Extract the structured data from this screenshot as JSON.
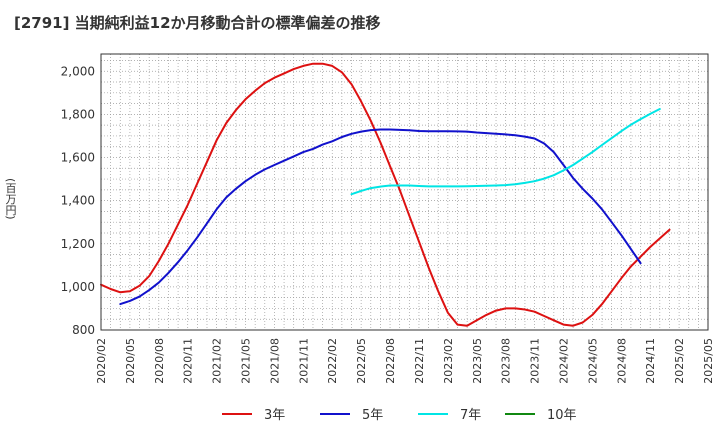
{
  "header": {
    "title": "[2791]  当期純利益12か月移動合計の標準偏差の推移"
  },
  "chart_data": {
    "type": "line",
    "y_unit": "(百万円)",
    "ylim": [
      800,
      2080
    ],
    "yticks": [
      800,
      1000,
      1200,
      1400,
      1600,
      1800,
      2000
    ],
    "ytick_labels": [
      "800",
      "1,000",
      "1,200",
      "1,400",
      "1,600",
      "1,800",
      "2,000"
    ],
    "xtick_labels": [
      "2020/02",
      "2020/05",
      "2020/08",
      "2020/11",
      "2021/02",
      "2021/05",
      "2021/08",
      "2021/11",
      "2022/02",
      "2022/05",
      "2022/08",
      "2022/11",
      "2023/02",
      "2023/05",
      "2023/08",
      "2023/11",
      "2024/02",
      "2024/05",
      "2024/08",
      "2024/11",
      "2025/02",
      "2025/05"
    ],
    "x_range_months": [
      "2020/02",
      "2025/05"
    ],
    "grid": true,
    "legend_position": "bottom",
    "series": [
      {
        "name": "3年",
        "color": "#dd1111",
        "start": "2020/02",
        "values": [
          1010,
          990,
          975,
          980,
          1005,
          1050,
          1120,
          1200,
          1290,
          1380,
          1480,
          1580,
          1680,
          1760,
          1820,
          1870,
          1910,
          1945,
          1970,
          1990,
          2010,
          2025,
          2035,
          2035,
          2025,
          1995,
          1940,
          1860,
          1770,
          1670,
          1560,
          1450,
          1330,
          1210,
          1090,
          980,
          880,
          825,
          820,
          845,
          870,
          890,
          900,
          900,
          895,
          885,
          865,
          845,
          825,
          820,
          835,
          870,
          920,
          980,
          1040,
          1095,
          1140,
          1185,
          1225,
          1265
        ]
      },
      {
        "name": "5年",
        "color": "#1111cc",
        "start": "2020/04",
        "values": [
          920,
          935,
          955,
          985,
          1020,
          1065,
          1115,
          1170,
          1230,
          1295,
          1360,
          1415,
          1455,
          1490,
          1520,
          1545,
          1565,
          1585,
          1605,
          1625,
          1640,
          1660,
          1675,
          1695,
          1710,
          1720,
          1727,
          1730,
          1730,
          1728,
          1726,
          1723,
          1722,
          1722,
          1722,
          1721,
          1720,
          1716,
          1713,
          1710,
          1707,
          1703,
          1697,
          1688,
          1665,
          1625,
          1565,
          1505,
          1455,
          1410,
          1360,
          1300,
          1240,
          1175,
          1110
        ]
      },
      {
        "name": "7年",
        "color": "#00e5e5",
        "start": "2022/04",
        "values": [
          1430,
          1445,
          1458,
          1465,
          1470,
          1470,
          1470,
          1468,
          1466,
          1466,
          1466,
          1466,
          1467,
          1468,
          1469,
          1470,
          1472,
          1476,
          1482,
          1490,
          1502,
          1518,
          1540,
          1565,
          1595,
          1625,
          1658,
          1690,
          1722,
          1752,
          1778,
          1802,
          1825
        ]
      },
      {
        "name": "10年",
        "color": "#118811",
        "start": "2020/02",
        "values": []
      }
    ]
  }
}
